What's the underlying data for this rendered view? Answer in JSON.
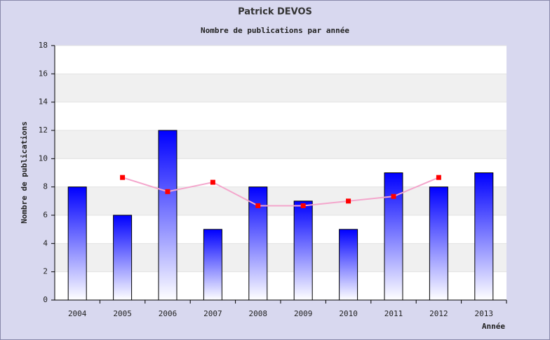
{
  "chart_data": {
    "type": "bar",
    "title": "Patrick DEVOS",
    "subtitle": "Nombre de publications par année",
    "y_label": "Nombre de publications",
    "x_label": "Année",
    "categories": [
      "2004",
      "2005",
      "2006",
      "2007",
      "2008",
      "2009",
      "2010",
      "2011",
      "2012",
      "2013"
    ],
    "series": [
      {
        "type": "bar",
        "color": "#0000ff",
        "values": [
          8,
          6,
          12,
          5,
          8,
          7,
          5,
          9,
          8,
          9
        ]
      },
      {
        "type": "line",
        "color": "#f4a6cc",
        "marker_color": "#ff0000",
        "values": [
          null,
          8.67,
          7.67,
          8.33,
          6.67,
          6.67,
          7,
          7.33,
          8.67,
          null
        ]
      }
    ],
    "ylim": [
      0,
      18
    ],
    "yticks": [
      0,
      2,
      4,
      6,
      8,
      10,
      12,
      14,
      16,
      18
    ],
    "grid": true
  }
}
